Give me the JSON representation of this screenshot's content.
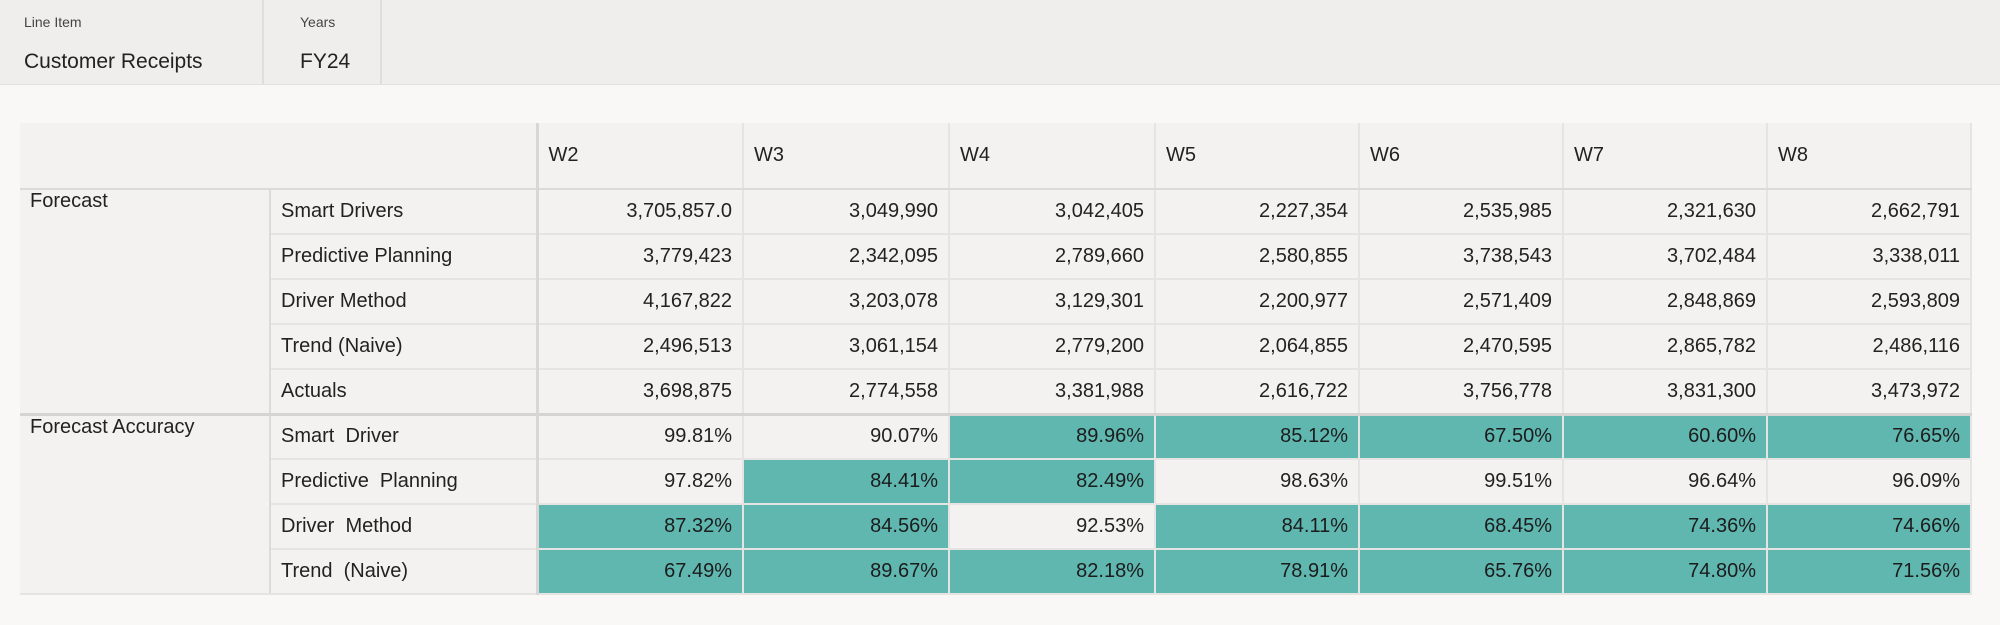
{
  "filters": [
    {
      "label": "Line Item",
      "value": "Customer Receipts"
    },
    {
      "label": "Years",
      "value": "FY24"
    }
  ],
  "colors": {
    "highlight": "#5fb7b0",
    "background": "#f3f2f1"
  },
  "grid": {
    "columns": [
      "W2",
      "W3",
      "W4",
      "W5",
      "W6",
      "W7",
      "W8"
    ],
    "groups": [
      {
        "label": "Forecast",
        "rows": [
          {
            "label": "Smart Drivers",
            "values": [
              "3,705,857.0",
              "3,049,990",
              "3,042,405",
              "2,227,354",
              "2,535,985",
              "2,321,630",
              "2,662,791"
            ],
            "highlight": [
              false,
              false,
              false,
              false,
              false,
              false,
              false
            ]
          },
          {
            "label": "Predictive Planning",
            "values": [
              "3,779,423",
              "2,342,095",
              "2,789,660",
              "2,580,855",
              "3,738,543",
              "3,702,484",
              "3,338,011"
            ],
            "highlight": [
              false,
              false,
              false,
              false,
              false,
              false,
              false
            ]
          },
          {
            "label": "Driver Method",
            "values": [
              "4,167,822",
              "3,203,078",
              "3,129,301",
              "2,200,977",
              "2,571,409",
              "2,848,869",
              "2,593,809"
            ],
            "highlight": [
              false,
              false,
              false,
              false,
              false,
              false,
              false
            ]
          },
          {
            "label": "Trend (Naive)",
            "values": [
              "2,496,513",
              "3,061,154",
              "2,779,200",
              "2,064,855",
              "2,470,595",
              "2,865,782",
              "2,486,116"
            ],
            "highlight": [
              false,
              false,
              false,
              false,
              false,
              false,
              false
            ]
          },
          {
            "label": "Actuals",
            "values": [
              "3,698,875",
              "2,774,558",
              "3,381,988",
              "2,616,722",
              "3,756,778",
              "3,831,300",
              "3,473,972"
            ],
            "highlight": [
              false,
              false,
              false,
              false,
              false,
              false,
              false
            ]
          }
        ]
      },
      {
        "label": "Forecast Accuracy",
        "rows": [
          {
            "label": "Smart  Driver",
            "values": [
              "99.81%",
              "90.07%",
              "89.96%",
              "85.12%",
              "67.50%",
              "60.60%",
              "76.65%"
            ],
            "highlight": [
              false,
              false,
              true,
              true,
              true,
              true,
              true
            ]
          },
          {
            "label": "Predictive  Planning",
            "values": [
              "97.82%",
              "84.41%",
              "82.49%",
              "98.63%",
              "99.51%",
              "96.64%",
              "96.09%"
            ],
            "highlight": [
              false,
              true,
              true,
              false,
              false,
              false,
              false
            ]
          },
          {
            "label": "Driver  Method",
            "values": [
              "87.32%",
              "84.56%",
              "92.53%",
              "84.11%",
              "68.45%",
              "74.36%",
              "74.66%"
            ],
            "highlight": [
              true,
              true,
              false,
              true,
              true,
              true,
              true
            ]
          },
          {
            "label": "Trend  (Naive)",
            "values": [
              "67.49%",
              "89.67%",
              "82.18%",
              "78.91%",
              "65.76%",
              "74.80%",
              "71.56%"
            ],
            "highlight": [
              true,
              true,
              true,
              true,
              true,
              true,
              true
            ]
          }
        ]
      }
    ]
  }
}
